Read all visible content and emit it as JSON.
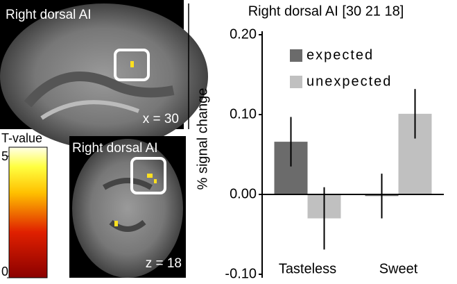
{
  "panels": [
    {
      "label": "Right dorsal AI",
      "coordinate": "x = 30"
    },
    {
      "label": "Right dorsal AI",
      "coordinate": "z = 18"
    }
  ],
  "colorbar": {
    "title": "T-value",
    "ticks": [
      5,
      0
    ],
    "range": [
      0,
      5
    ]
  },
  "chart_data": {
    "type": "bar",
    "title": "Right dorsal AI [30 21 18]",
    "y_label": "% signal change",
    "categories": [
      "Tasteless",
      "Sweet"
    ],
    "series": [
      {
        "name": "expected",
        "color": "#6b6b6b",
        "values": [
          0.066,
          -0.002
        ],
        "errors": [
          0.031,
          0.028
        ]
      },
      {
        "name": "unexpected",
        "color": "#c0c0c0",
        "values": [
          -0.03,
          0.101
        ],
        "errors": [
          0.039,
          0.031
        ]
      }
    ],
    "ylim": [
      -0.1,
      0.2
    ],
    "yticks": [
      {
        "value": 0.2,
        "label": "0.20"
      },
      {
        "value": 0.1,
        "label": "0.10"
      },
      {
        "value": 0,
        "label": "0.00"
      },
      {
        "value": -0.1,
        "label": "-0.10"
      }
    ],
    "legend": "upper left"
  }
}
